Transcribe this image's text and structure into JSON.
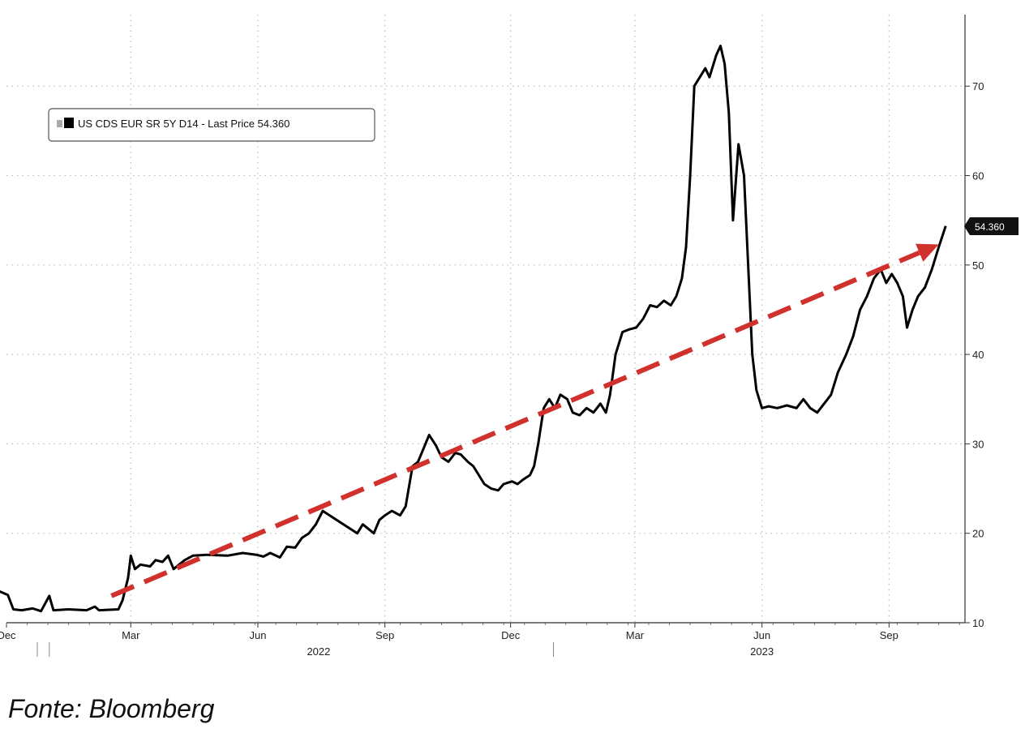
{
  "chart_data": {
    "type": "line",
    "legend": "US CDS EUR SR 5Y D14 - Last Price 54.360",
    "legend_position": "top-left",
    "last_price_badge": "54.360",
    "grid": true,
    "ylim": [
      10,
      78
    ],
    "yticks": [
      10,
      20,
      30,
      40,
      50,
      60,
      70
    ],
    "ytick_labels": [
      "10",
      "20",
      "30",
      "40",
      "50",
      "60",
      "70"
    ],
    "xlim": [
      "2021-12-01",
      "2023-10-26"
    ],
    "xticks": [
      {
        "date": "2021-12-01",
        "label": "Dec"
      },
      {
        "date": "2022-03-01",
        "label": "Mar"
      },
      {
        "date": "2022-06-01",
        "label": "Jun"
      },
      {
        "date": "2022-09-01",
        "label": "Sep"
      },
      {
        "date": "2022-12-01",
        "label": "Dec"
      },
      {
        "date": "2023-03-01",
        "label": "Mar"
      },
      {
        "date": "2023-06-01",
        "label": "Jun"
      },
      {
        "date": "2023-09-01",
        "label": "Sep"
      }
    ],
    "year_labels": [
      {
        "date": "2022-01-01",
        "label": "2022",
        "center": "2022-07-15"
      },
      {
        "date": "2023-01-01",
        "label": "2023",
        "center": "2023-06-01"
      }
    ],
    "series": [
      {
        "color": "#000000",
        "points": [
          [
            "2021-11-26",
            13.5
          ],
          [
            "2021-12-02",
            13.1
          ],
          [
            "2021-12-06",
            11.5
          ],
          [
            "2021-12-12",
            11.4
          ],
          [
            "2021-12-20",
            11.6
          ],
          [
            "2021-12-26",
            11.3
          ],
          [
            "2022-01-01",
            13.0
          ],
          [
            "2022-01-04",
            11.4
          ],
          [
            "2022-01-15",
            11.5
          ],
          [
            "2022-01-28",
            11.4
          ],
          [
            "2022-02-03",
            11.8
          ],
          [
            "2022-02-06",
            11.4
          ],
          [
            "2022-02-20",
            11.5
          ],
          [
            "2022-02-23",
            12.5
          ],
          [
            "2022-02-27",
            15.0
          ],
          [
            "2022-03-01",
            17.5
          ],
          [
            "2022-03-04",
            16.0
          ],
          [
            "2022-03-08",
            16.5
          ],
          [
            "2022-03-15",
            16.3
          ],
          [
            "2022-03-19",
            17.0
          ],
          [
            "2022-03-24",
            16.8
          ],
          [
            "2022-03-28",
            17.5
          ],
          [
            "2022-04-01",
            16.0
          ],
          [
            "2022-04-05",
            16.5
          ],
          [
            "2022-04-09",
            17.0
          ],
          [
            "2022-04-15",
            17.5
          ],
          [
            "2022-04-25",
            17.6
          ],
          [
            "2022-05-10",
            17.5
          ],
          [
            "2022-05-21",
            17.8
          ],
          [
            "2022-05-31",
            17.6
          ],
          [
            "2022-06-05",
            17.4
          ],
          [
            "2022-06-10",
            17.8
          ],
          [
            "2022-06-17",
            17.3
          ],
          [
            "2022-06-22",
            18.5
          ],
          [
            "2022-06-28",
            18.4
          ],
          [
            "2022-07-03",
            19.5
          ],
          [
            "2022-07-08",
            20.0
          ],
          [
            "2022-07-13",
            21.0
          ],
          [
            "2022-07-18",
            22.5
          ],
          [
            "2022-07-23",
            22.0
          ],
          [
            "2022-07-28",
            21.5
          ],
          [
            "2022-08-02",
            21.0
          ],
          [
            "2022-08-07",
            20.5
          ],
          [
            "2022-08-12",
            20.0
          ],
          [
            "2022-08-16",
            21.0
          ],
          [
            "2022-08-20",
            20.5
          ],
          [
            "2022-08-24",
            20.0
          ],
          [
            "2022-08-28",
            21.5
          ],
          [
            "2022-09-01",
            22.0
          ],
          [
            "2022-09-06",
            22.5
          ],
          [
            "2022-09-12",
            22.0
          ],
          [
            "2022-09-16",
            23.0
          ],
          [
            "2022-09-21",
            27.5
          ],
          [
            "2022-09-25",
            28.0
          ],
          [
            "2022-09-29",
            29.5
          ],
          [
            "2022-10-03",
            31.0
          ],
          [
            "2022-10-08",
            29.8
          ],
          [
            "2022-10-12",
            28.5
          ],
          [
            "2022-10-17",
            28.0
          ],
          [
            "2022-10-22",
            29.0
          ],
          [
            "2022-10-26",
            28.8
          ],
          [
            "2022-10-31",
            28.0
          ],
          [
            "2022-11-04",
            27.5
          ],
          [
            "2022-11-08",
            26.5
          ],
          [
            "2022-11-12",
            25.5
          ],
          [
            "2022-11-17",
            25.0
          ],
          [
            "2022-11-22",
            24.8
          ],
          [
            "2022-11-26",
            25.5
          ],
          [
            "2022-12-02",
            25.8
          ],
          [
            "2022-12-06",
            25.5
          ],
          [
            "2022-12-10",
            26.0
          ],
          [
            "2022-12-15",
            26.5
          ],
          [
            "2022-12-18",
            27.5
          ],
          [
            "2022-12-21",
            30.0
          ],
          [
            "2022-12-25",
            34.0
          ],
          [
            "2022-12-29",
            35.0
          ],
          [
            "2023-01-02",
            34.0
          ],
          [
            "2023-01-06",
            35.5
          ],
          [
            "2023-01-11",
            35.0
          ],
          [
            "2023-01-15",
            33.5
          ],
          [
            "2023-01-20",
            33.2
          ],
          [
            "2023-01-25",
            34.0
          ],
          [
            "2023-01-30",
            33.5
          ],
          [
            "2023-02-04",
            34.5
          ],
          [
            "2023-02-08",
            33.5
          ],
          [
            "2023-02-11",
            35.5
          ],
          [
            "2023-02-15",
            40.0
          ],
          [
            "2023-02-20",
            42.5
          ],
          [
            "2023-02-25",
            42.8
          ],
          [
            "2023-03-02",
            43.0
          ],
          [
            "2023-03-07",
            44.0
          ],
          [
            "2023-03-12",
            45.5
          ],
          [
            "2023-03-17",
            45.3
          ],
          [
            "2023-03-22",
            46.0
          ],
          [
            "2023-03-27",
            45.5
          ],
          [
            "2023-03-31",
            46.5
          ],
          [
            "2023-04-04",
            48.5
          ],
          [
            "2023-04-07",
            52.0
          ],
          [
            "2023-04-10",
            60.0
          ],
          [
            "2023-04-13",
            70.0
          ],
          [
            "2023-04-17",
            71.0
          ],
          [
            "2023-04-21",
            72.0
          ],
          [
            "2023-04-24",
            71.0
          ],
          [
            "2023-04-29",
            73.5
          ],
          [
            "2023-05-02",
            74.5
          ],
          [
            "2023-05-05",
            72.5
          ],
          [
            "2023-05-08",
            67.0
          ],
          [
            "2023-05-11",
            55.0
          ],
          [
            "2023-05-15",
            63.5
          ],
          [
            "2023-05-19",
            60.0
          ],
          [
            "2023-05-22",
            50.0
          ],
          [
            "2023-05-25",
            40.0
          ],
          [
            "2023-05-28",
            36.0
          ],
          [
            "2023-06-01",
            34.0
          ],
          [
            "2023-06-06",
            34.2
          ],
          [
            "2023-06-12",
            34.0
          ],
          [
            "2023-06-19",
            34.3
          ],
          [
            "2023-06-26",
            34.0
          ],
          [
            "2023-07-01",
            35.0
          ],
          [
            "2023-07-06",
            34.0
          ],
          [
            "2023-07-11",
            33.5
          ],
          [
            "2023-07-16",
            34.5
          ],
          [
            "2023-07-21",
            35.5
          ],
          [
            "2023-07-26",
            38.0
          ],
          [
            "2023-08-01",
            40.0
          ],
          [
            "2023-08-06",
            42.0
          ],
          [
            "2023-08-11",
            45.0
          ],
          [
            "2023-08-16",
            46.5
          ],
          [
            "2023-08-21",
            48.5
          ],
          [
            "2023-08-26",
            49.5
          ],
          [
            "2023-08-30",
            48.0
          ],
          [
            "2023-09-03",
            49.0
          ],
          [
            "2023-09-07",
            48.0
          ],
          [
            "2023-09-11",
            46.5
          ],
          [
            "2023-09-14",
            43.0
          ],
          [
            "2023-09-18",
            45.0
          ],
          [
            "2023-09-22",
            46.5
          ],
          [
            "2023-09-27",
            47.5
          ],
          [
            "2023-10-02",
            49.5
          ],
          [
            "2023-10-07",
            52.0
          ],
          [
            "2023-10-12",
            54.36
          ]
        ]
      }
    ],
    "annotations": [
      {
        "type": "dashed-arrow",
        "color": "#d0312d",
        "from": [
          "2022-02-15",
          13.0
        ],
        "to": [
          "2023-10-07",
          52.3
        ]
      }
    ]
  },
  "source_text": "Fonte: Bloomberg"
}
